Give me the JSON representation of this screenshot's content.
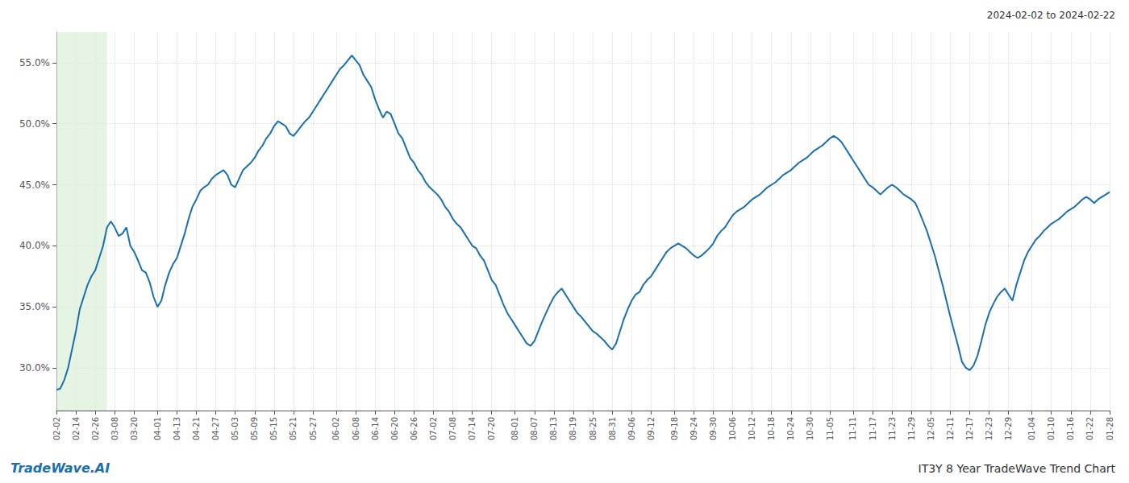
{
  "chart_data": {
    "type": "line",
    "title": "IT3Y 8 Year TradeWave Trend Chart",
    "subtitle": "2024-02-02 to 2024-02-22",
    "annotations": [
      "TradeWave.AI"
    ],
    "color": "#1a6faf",
    "grid": true,
    "highlight": {
      "range": [
        0,
        13
      ],
      "color": "#d6ecd2"
    },
    "ylim": [
      0.265,
      0.575
    ],
    "yticks": [
      {
        "value": 0.3,
        "label": "30.0%"
      },
      {
        "value": 0.35,
        "label": "35.0%"
      },
      {
        "value": 0.4,
        "label": "40.0%"
      },
      {
        "value": 0.45,
        "label": "45.0%"
      },
      {
        "value": 0.5,
        "label": "50.0%"
      },
      {
        "value": 0.55,
        "label": "55.0%"
      }
    ],
    "categories": [
      "02-02",
      null,
      null,
      null,
      null,
      "02-14",
      null,
      null,
      null,
      null,
      "02-26",
      null,
      null,
      null,
      null,
      "03-08",
      null,
      null,
      null,
      null,
      "03-20",
      null,
      null,
      null,
      null,
      null,
      "04-01",
      null,
      null,
      null,
      null,
      "04-13",
      null,
      null,
      null,
      null,
      "04-21",
      null,
      null,
      null,
      null,
      "04-27",
      null,
      null,
      null,
      null,
      "05-03",
      null,
      null,
      null,
      null,
      "05-09",
      null,
      null,
      null,
      null,
      "05-15",
      null,
      null,
      null,
      null,
      "05-21",
      null,
      null,
      null,
      null,
      "05-27",
      null,
      null,
      null,
      null,
      null,
      "06-02",
      null,
      null,
      null,
      null,
      "06-08",
      null,
      null,
      null,
      null,
      "06-14",
      null,
      null,
      null,
      null,
      "06-20",
      null,
      null,
      null,
      null,
      "06-26",
      null,
      null,
      null,
      null,
      "07-02",
      null,
      null,
      null,
      null,
      "07-08",
      null,
      null,
      null,
      null,
      "07-14",
      null,
      null,
      null,
      null,
      "07-20",
      null,
      null,
      null,
      null,
      null,
      "08-01",
      null,
      null,
      null,
      null,
      "08-07",
      null,
      null,
      null,
      null,
      "08-13",
      null,
      null,
      null,
      null,
      "08-19",
      null,
      null,
      null,
      null,
      "08-25",
      null,
      null,
      null,
      null,
      "08-31",
      null,
      null,
      null,
      null,
      "09-06",
      null,
      null,
      null,
      null,
      "09-12",
      null,
      null,
      null,
      null,
      null,
      "09-18",
      null,
      null,
      null,
      null,
      "09-24",
      null,
      null,
      null,
      null,
      "09-30",
      null,
      null,
      null,
      null,
      "10-06",
      null,
      null,
      null,
      null,
      "10-12",
      null,
      null,
      null,
      null,
      "10-18",
      null,
      null,
      null,
      null,
      "10-24",
      null,
      null,
      null,
      null,
      "10-30",
      null,
      null,
      null,
      null,
      "11-05",
      null,
      null,
      null,
      null,
      null,
      "11-11",
      null,
      null,
      null,
      null,
      "11-17",
      null,
      null,
      null,
      null,
      "11-23",
      null,
      null,
      null,
      null,
      "11-29",
      null,
      null,
      null,
      null,
      "12-05",
      null,
      null,
      null,
      null,
      "12-11",
      null,
      null,
      null,
      null,
      "12-17",
      null,
      null,
      null,
      null,
      "12-23",
      null,
      null,
      null,
      null,
      "12-29",
      null,
      null,
      null,
      null,
      null,
      "01-04",
      null,
      null,
      null,
      null,
      "01-10",
      null,
      null,
      null,
      null,
      "01-16",
      null,
      null,
      null,
      null,
      "01-22",
      null,
      null,
      null,
      null,
      "01-28"
    ],
    "values": [
      0.282,
      0.283,
      0.29,
      0.3,
      0.315,
      0.33,
      0.348,
      0.358,
      0.368,
      0.375,
      0.38,
      0.39,
      0.4,
      0.415,
      0.42,
      0.415,
      0.408,
      0.41,
      0.415,
      0.4,
      0.395,
      0.388,
      0.38,
      0.378,
      0.37,
      0.358,
      0.35,
      0.355,
      0.368,
      0.378,
      0.385,
      0.39,
      0.4,
      0.41,
      0.422,
      0.432,
      0.438,
      0.445,
      0.448,
      0.45,
      0.455,
      0.458,
      0.46,
      0.462,
      0.458,
      0.45,
      0.448,
      0.455,
      0.462,
      0.465,
      0.468,
      0.472,
      0.478,
      0.482,
      0.488,
      0.492,
      0.498,
      0.502,
      0.5,
      0.498,
      0.492,
      0.49,
      0.494,
      0.498,
      0.502,
      0.505,
      0.51,
      0.515,
      0.52,
      0.525,
      0.53,
      0.535,
      0.54,
      0.545,
      0.548,
      0.552,
      0.556,
      0.552,
      0.548,
      0.54,
      0.535,
      0.53,
      0.52,
      0.512,
      0.505,
      0.51,
      0.508,
      0.5,
      0.492,
      0.488,
      0.48,
      0.472,
      0.468,
      0.462,
      0.458,
      0.452,
      0.448,
      0.445,
      0.442,
      0.438,
      0.432,
      0.428,
      0.422,
      0.418,
      0.415,
      0.41,
      0.405,
      0.4,
      0.398,
      0.392,
      0.388,
      0.38,
      0.372,
      0.368,
      0.36,
      0.352,
      0.345,
      0.34,
      0.335,
      0.33,
      0.325,
      0.32,
      0.318,
      0.322,
      0.33,
      0.338,
      0.345,
      0.352,
      0.358,
      0.362,
      0.365,
      0.36,
      0.355,
      0.35,
      0.345,
      0.342,
      0.338,
      0.334,
      0.33,
      0.328,
      0.325,
      0.322,
      0.318,
      0.315,
      0.32,
      0.33,
      0.34,
      0.348,
      0.355,
      0.36,
      0.362,
      0.368,
      0.372,
      0.375,
      0.38,
      0.385,
      0.39,
      0.395,
      0.398,
      0.4,
      0.402,
      0.4,
      0.398,
      0.395,
      0.392,
      0.39,
      0.392,
      0.395,
      0.398,
      0.402,
      0.408,
      0.412,
      0.415,
      0.42,
      0.425,
      0.428,
      0.43,
      0.432,
      0.435,
      0.438,
      0.44,
      0.442,
      0.445,
      0.448,
      0.45,
      0.452,
      0.455,
      0.458,
      0.46,
      0.462,
      0.465,
      0.468,
      0.47,
      0.472,
      0.475,
      0.478,
      0.48,
      0.482,
      0.485,
      0.488,
      0.49,
      0.488,
      0.485,
      0.48,
      0.475,
      0.47,
      0.465,
      0.46,
      0.455,
      0.45,
      0.448,
      0.445,
      0.442,
      0.445,
      0.448,
      0.45,
      0.448,
      0.445,
      0.442,
      0.44,
      0.438,
      0.435,
      0.428,
      0.42,
      0.412,
      0.402,
      0.392,
      0.38,
      0.368,
      0.355,
      0.342,
      0.33,
      0.318,
      0.305,
      0.3,
      0.298,
      0.302,
      0.31,
      0.322,
      0.335,
      0.345,
      0.352,
      0.358,
      0.362,
      0.365,
      0.36,
      0.355,
      0.368,
      0.378,
      0.388,
      0.395,
      0.4,
      0.405,
      0.408,
      0.412,
      0.415,
      0.418,
      0.42,
      0.422,
      0.425,
      0.428,
      0.43,
      0.432,
      0.435,
      0.438,
      0.44,
      0.438,
      0.435,
      0.438,
      0.44,
      0.442,
      0.444
    ]
  }
}
